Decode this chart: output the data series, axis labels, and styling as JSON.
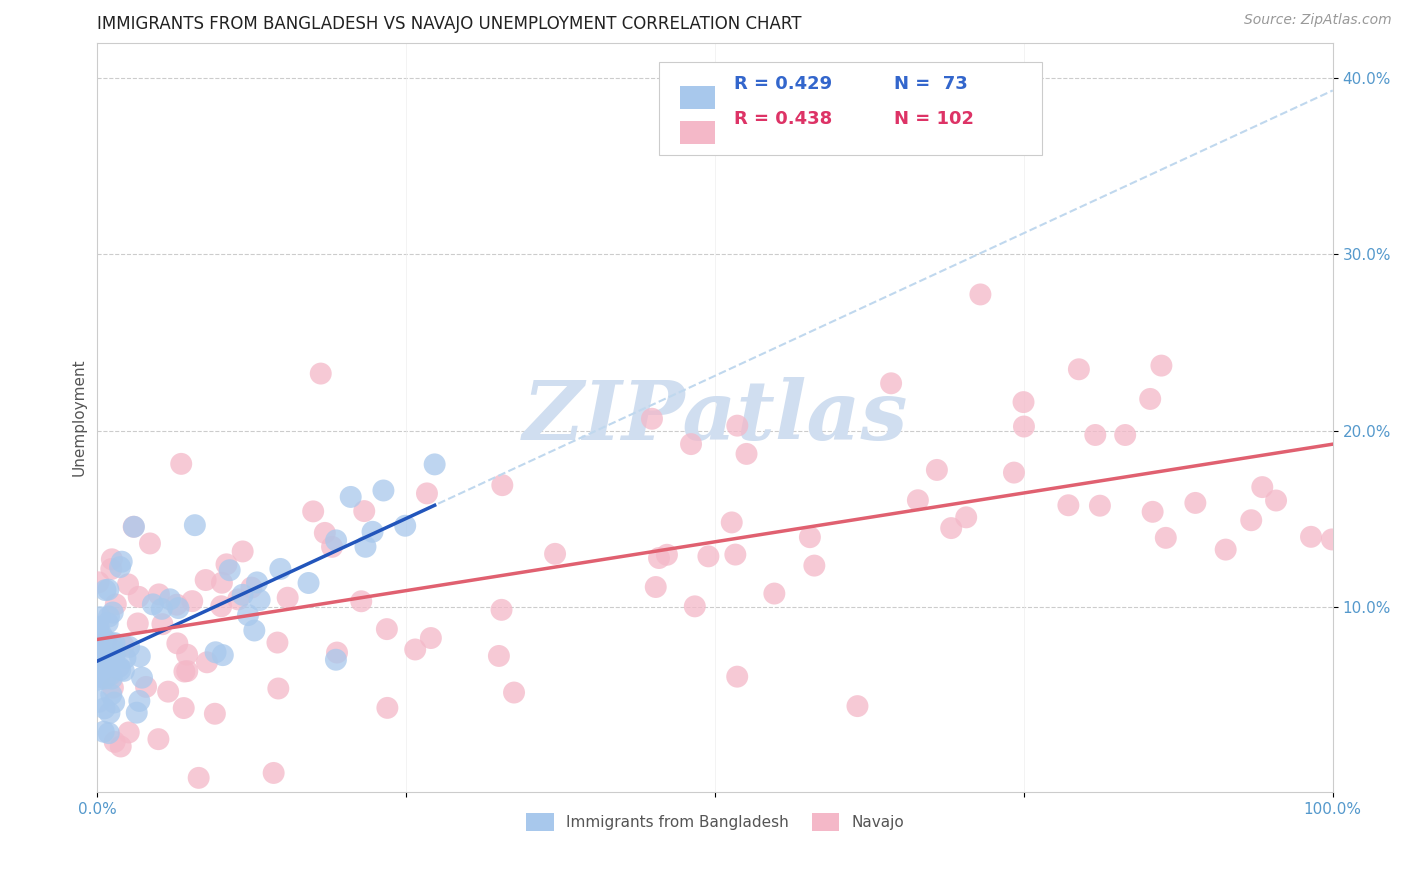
{
  "title": "IMMIGRANTS FROM BANGLADESH VS NAVAJO UNEMPLOYMENT CORRELATION CHART",
  "source": "Source: ZipAtlas.com",
  "ylabel": "Unemployment",
  "xlim": [
    0.0,
    1.0
  ],
  "ylim": [
    -0.005,
    0.42
  ],
  "xtick_positions": [
    0.0,
    0.25,
    0.5,
    0.75,
    1.0
  ],
  "xticklabels": [
    "0.0%",
    "",
    "",
    "",
    "100.0%"
  ],
  "ytick_positions": [
    0.1,
    0.2,
    0.3,
    0.4
  ],
  "yticklabels_right": [
    "10.0%",
    "20.0%",
    "30.0%",
    "40.0%"
  ],
  "legend_r_blue": "R = 0.429",
  "legend_n_blue": "N =  73",
  "legend_r_pink": "R = 0.438",
  "legend_n_pink": "N = 102",
  "blue_scatter_color": "#A8C8EC",
  "pink_scatter_color": "#F4B8C8",
  "blue_line_color": "#2255BB",
  "pink_line_color": "#E06070",
  "blue_dashed_color": "#C0D8EE",
  "legend_text_dark": "#333333",
  "legend_text_blue": "#3366CC",
  "legend_text_pink": "#DD3366",
  "tick_color": "#5599CC",
  "watermark_color": "#D0DEF0",
  "title_fontsize": 12,
  "axis_label_fontsize": 11,
  "tick_fontsize": 11,
  "source_fontsize": 10,
  "n_blue": 73,
  "n_pink": 102
}
